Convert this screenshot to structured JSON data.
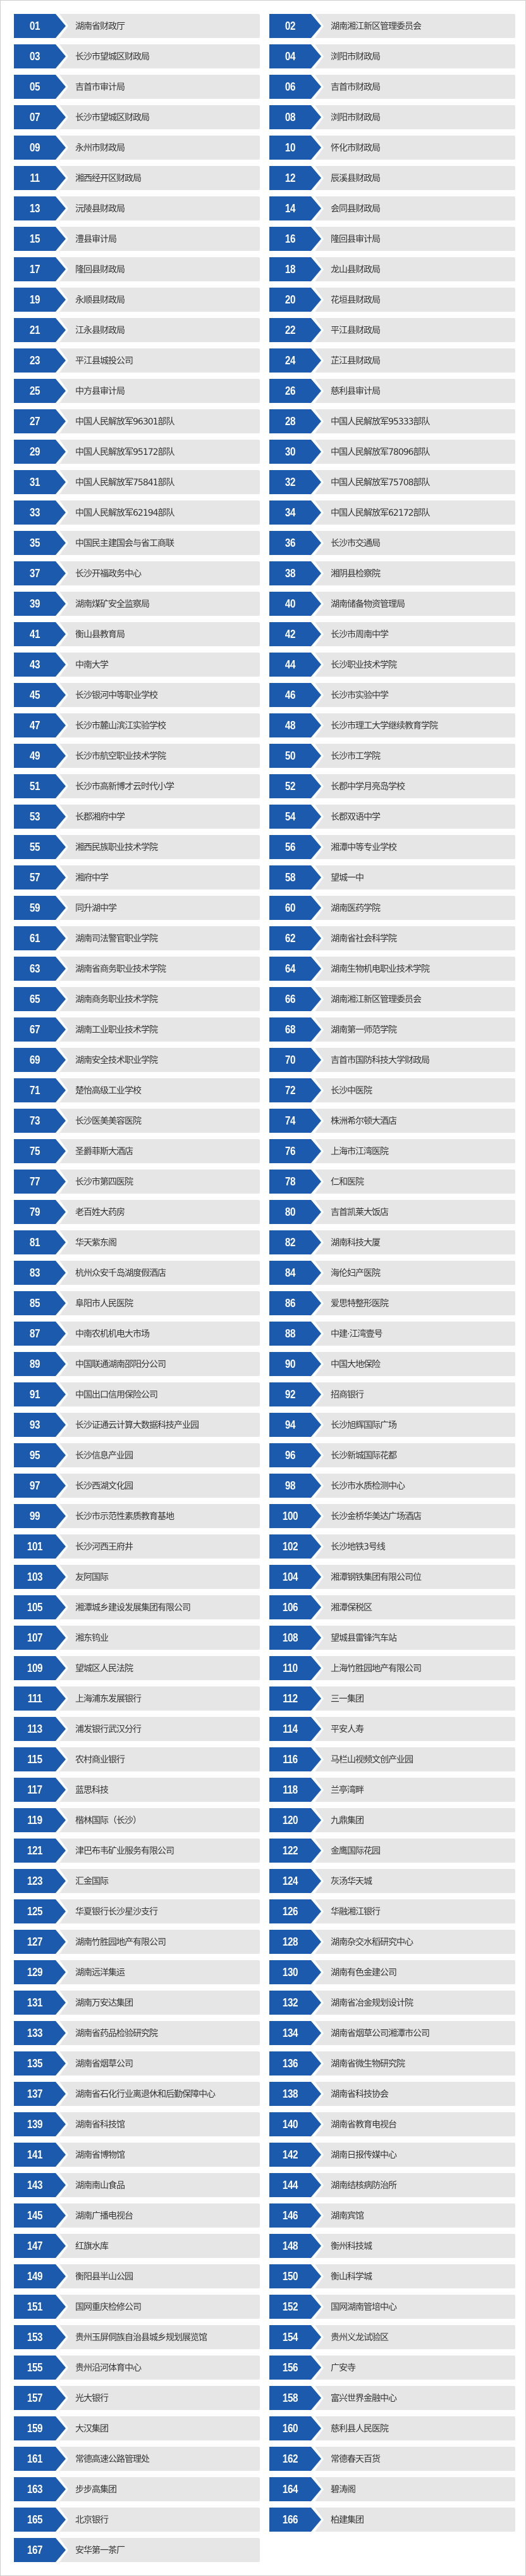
{
  "colors": {
    "badge": "#1c5aad",
    "item_bg": "#e6e6e6",
    "text": "#333333"
  },
  "items": [
    {
      "number": "01",
      "name": "湖南省财政厅"
    },
    {
      "number": "02",
      "name": "湖南湘江新区管理委员会"
    },
    {
      "number": "03",
      "name": "长沙市望城区财政局"
    },
    {
      "number": "04",
      "name": "浏阳市财政局"
    },
    {
      "number": "05",
      "name": "吉首市审计局"
    },
    {
      "number": "06",
      "name": "吉首市财政局"
    },
    {
      "number": "07",
      "name": "长沙市望城区财政局"
    },
    {
      "number": "08",
      "name": "浏阳市财政局"
    },
    {
      "number": "09",
      "name": "永州市财政局"
    },
    {
      "number": "10",
      "name": "怀化市财政局"
    },
    {
      "number": "11",
      "name": "湘西经开区财政局"
    },
    {
      "number": "12",
      "name": "辰溪县财政局"
    },
    {
      "number": "13",
      "name": "沅陵县财政局"
    },
    {
      "number": "14",
      "name": "会同县财政局"
    },
    {
      "number": "15",
      "name": "澧县审计局"
    },
    {
      "number": "16",
      "name": "隆回县审计局"
    },
    {
      "number": "17",
      "name": "隆回县财政局"
    },
    {
      "number": "18",
      "name": "龙山县财政局"
    },
    {
      "number": "19",
      "name": "永顺县财政局"
    },
    {
      "number": "20",
      "name": "花垣县财政局"
    },
    {
      "number": "21",
      "name": "江永县财政局"
    },
    {
      "number": "22",
      "name": "平江县财政局"
    },
    {
      "number": "23",
      "name": "平江县城投公司"
    },
    {
      "number": "24",
      "name": "芷江县财政局"
    },
    {
      "number": "25",
      "name": "中方县审计局"
    },
    {
      "number": "26",
      "name": "慈利县审计局"
    },
    {
      "number": "27",
      "name": "中国人民解放军96301部队"
    },
    {
      "number": "28",
      "name": "中国人民解放军95333部队"
    },
    {
      "number": "29",
      "name": "中国人民解放军95172部队"
    },
    {
      "number": "30",
      "name": "中国人民解放军78096部队"
    },
    {
      "number": "31",
      "name": "中国人民解放军75841部队"
    },
    {
      "number": "32",
      "name": "中国人民解放军75708部队"
    },
    {
      "number": "33",
      "name": "中国人民解放军62194部队"
    },
    {
      "number": "34",
      "name": "中国人民解放军62172部队"
    },
    {
      "number": "35",
      "name": "中国民主建国会与省工商联"
    },
    {
      "number": "36",
      "name": "长沙市交通局"
    },
    {
      "number": "37",
      "name": "长沙开福政务中心"
    },
    {
      "number": "38",
      "name": "湘阴县检察院"
    },
    {
      "number": "39",
      "name": "湖南煤矿安全监察局"
    },
    {
      "number": "40",
      "name": "湖南储备物资管理局"
    },
    {
      "number": "41",
      "name": "衡山县教育局"
    },
    {
      "number": "42",
      "name": "长沙市周南中学"
    },
    {
      "number": "43",
      "name": "中南大学"
    },
    {
      "number": "44",
      "name": "长沙职业技术学院"
    },
    {
      "number": "45",
      "name": "长沙银河中等职业学校"
    },
    {
      "number": "46",
      "name": "长沙市实验中学"
    },
    {
      "number": "47",
      "name": "长沙市麓山滨江实验学校"
    },
    {
      "number": "48",
      "name": "长沙市理工大学继续教育学院"
    },
    {
      "number": "49",
      "name": "长沙市航空职业技术学院"
    },
    {
      "number": "50",
      "name": "长沙市工学院"
    },
    {
      "number": "51",
      "name": "长沙市高新博才云时代小学"
    },
    {
      "number": "52",
      "name": "长郡中学月亮岛学校"
    },
    {
      "number": "53",
      "name": "长郡湘府中学"
    },
    {
      "number": "54",
      "name": "长郡双语中学"
    },
    {
      "number": "55",
      "name": "湘西民族职业技术学院"
    },
    {
      "number": "56",
      "name": "湘潭中等专业学校"
    },
    {
      "number": "57",
      "name": "湘府中学"
    },
    {
      "number": "58",
      "name": "望城一中"
    },
    {
      "number": "59",
      "name": "同升湖中学"
    },
    {
      "number": "60",
      "name": "湖南医药学院"
    },
    {
      "number": "61",
      "name": "湖南司法警官职业学院"
    },
    {
      "number": "62",
      "name": "湖南省社会科学院"
    },
    {
      "number": "63",
      "name": "湖南省商务职业技术学院"
    },
    {
      "number": "64",
      "name": "湖南生物机电职业技术学院"
    },
    {
      "number": "65",
      "name": "湖南商务职业技术学院"
    },
    {
      "number": "66",
      "name": "湖南湘江新区管理委员会"
    },
    {
      "number": "67",
      "name": "湖南工业职业技术学院"
    },
    {
      "number": "68",
      "name": "湖南第一师范学院"
    },
    {
      "number": "69",
      "name": "湖南安全技术职业学院"
    },
    {
      "number": "70",
      "name": "吉首市国防科技大学财政局"
    },
    {
      "number": "71",
      "name": "楚怡高级工业学校"
    },
    {
      "number": "72",
      "name": "长沙中医院"
    },
    {
      "number": "73",
      "name": "长沙医美美容医院"
    },
    {
      "number": "74",
      "name": "株洲希尔顿大酒店"
    },
    {
      "number": "75",
      "name": "圣爵菲斯大酒店"
    },
    {
      "number": "76",
      "name": "上海市江湾医院"
    },
    {
      "number": "77",
      "name": "长沙市第四医院"
    },
    {
      "number": "78",
      "name": "仁和医院"
    },
    {
      "number": "79",
      "name": "老百姓大药房"
    },
    {
      "number": "80",
      "name": "吉首凯莱大饭店"
    },
    {
      "number": "81",
      "name": "华天紫东阁"
    },
    {
      "number": "82",
      "name": "湖南科技大厦"
    },
    {
      "number": "83",
      "name": "杭州众安千岛湖度假酒店"
    },
    {
      "number": "84",
      "name": "海伦妇产医院"
    },
    {
      "number": "85",
      "name": "阜阳市人民医院"
    },
    {
      "number": "86",
      "name": "爱思特整形医院"
    },
    {
      "number": "87",
      "name": "中南农机机电大市场"
    },
    {
      "number": "88",
      "name": "中建·江湾壹号"
    },
    {
      "number": "89",
      "name": "中国联通湖南邵阳分公司"
    },
    {
      "number": "90",
      "name": "中国大地保险"
    },
    {
      "number": "91",
      "name": "中国出口信用保险公司"
    },
    {
      "number": "92",
      "name": "招商银行"
    },
    {
      "number": "93",
      "name": "长沙证通云计算大数据科技产业园"
    },
    {
      "number": "94",
      "name": "长沙旭辉国际广场"
    },
    {
      "number": "95",
      "name": "长沙信息产业园"
    },
    {
      "number": "96",
      "name": "长沙新城国际花都"
    },
    {
      "number": "97",
      "name": "长沙西湖文化园"
    },
    {
      "number": "98",
      "name": "长沙市水质检测中心"
    },
    {
      "number": "99",
      "name": "长沙市示范性素质教育基地"
    },
    {
      "number": "100",
      "name": "长沙金桥华美达广场酒店"
    },
    {
      "number": "101",
      "name": "长沙河西王府井"
    },
    {
      "number": "102",
      "name": "长沙地铁3号线"
    },
    {
      "number": "103",
      "name": "友阿国际"
    },
    {
      "number": "104",
      "name": "湘潭钢铁集团有限公司位"
    },
    {
      "number": "105",
      "name": "湘潭城乡建设发展集团有限公司"
    },
    {
      "number": "106",
      "name": "湘潭保税区"
    },
    {
      "number": "107",
      "name": "湘东钨业"
    },
    {
      "number": "108",
      "name": "望城县雷锋汽车站"
    },
    {
      "number": "109",
      "name": "望城区人民法院"
    },
    {
      "number": "110",
      "name": "上海竹胜园地产有限公司"
    },
    {
      "number": "111",
      "name": "上海浦东发展银行"
    },
    {
      "number": "112",
      "name": "三一集团"
    },
    {
      "number": "113",
      "name": "浦发银行武汉分行"
    },
    {
      "number": "114",
      "name": "平安人寿"
    },
    {
      "number": "115",
      "name": "农村商业银行"
    },
    {
      "number": "116",
      "name": "马栏山视频文创产业园"
    },
    {
      "number": "117",
      "name": "蓝思科技"
    },
    {
      "number": "118",
      "name": "兰亭湾畔"
    },
    {
      "number": "119",
      "name": "楷林国际（长沙）"
    },
    {
      "number": "120",
      "name": "九鼎集团"
    },
    {
      "number": "121",
      "name": "津巴布韦矿业服务有限公司"
    },
    {
      "number": "122",
      "name": "金鹰国际花园"
    },
    {
      "number": "123",
      "name": "汇金国际"
    },
    {
      "number": "124",
      "name": "灰汤华天城"
    },
    {
      "number": "125",
      "name": "华夏银行长沙星沙支行"
    },
    {
      "number": "126",
      "name": "华融湘江银行"
    },
    {
      "number": "127",
      "name": "湖南竹胜园地产有限公司"
    },
    {
      "number": "128",
      "name": "湖南杂交水稻研究中心"
    },
    {
      "number": "129",
      "name": "湖南远洋集运"
    },
    {
      "number": "130",
      "name": "湖南有色金建公司"
    },
    {
      "number": "131",
      "name": "湖南万安达集团"
    },
    {
      "number": "132",
      "name": "湖南省冶金规划设计院"
    },
    {
      "number": "133",
      "name": "湖南省药品检验研究院"
    },
    {
      "number": "134",
      "name": "湖南省烟草公司湘潭市公司"
    },
    {
      "number": "135",
      "name": "湖南省烟草公司"
    },
    {
      "number": "136",
      "name": "湖南省微生物研究院"
    },
    {
      "number": "137",
      "name": "湖南省石化行业离退休和后勤保障中心"
    },
    {
      "number": "138",
      "name": "湖南省科技协会"
    },
    {
      "number": "139",
      "name": "湖南省科技馆"
    },
    {
      "number": "140",
      "name": "湖南省教育电视台"
    },
    {
      "number": "141",
      "name": "湖南省博物馆"
    },
    {
      "number": "142",
      "name": "湖南日报传媒中心"
    },
    {
      "number": "143",
      "name": "湖南南山食品"
    },
    {
      "number": "144",
      "name": "湖南结核病防治所"
    },
    {
      "number": "145",
      "name": "湖南广播电视台"
    },
    {
      "number": "146",
      "name": "湖南宾馆"
    },
    {
      "number": "147",
      "name": "红旗水库"
    },
    {
      "number": "148",
      "name": "衡州科技城"
    },
    {
      "number": "149",
      "name": "衡阳县半山公园"
    },
    {
      "number": "150",
      "name": "衡山科学城"
    },
    {
      "number": "151",
      "name": "国网重庆检修公司"
    },
    {
      "number": "152",
      "name": "国网湖南管培中心"
    },
    {
      "number": "153",
      "name": "贵州玉屏侗族自治县城乡规划展览馆"
    },
    {
      "number": "154",
      "name": "贵州义龙试验区"
    },
    {
      "number": "155",
      "name": "贵州沿河体育中心"
    },
    {
      "number": "156",
      "name": "广安寺"
    },
    {
      "number": "157",
      "name": "光大银行"
    },
    {
      "number": "158",
      "name": "富兴世界金融中心"
    },
    {
      "number": "159",
      "name": "大汉集团"
    },
    {
      "number": "160",
      "name": "慈利县人民医院"
    },
    {
      "number": "161",
      "name": "常德高速公路管理处"
    },
    {
      "number": "162",
      "name": "常德春天百货"
    },
    {
      "number": "163",
      "name": "步步高集团"
    },
    {
      "number": "164",
      "name": "碧涛阁"
    },
    {
      "number": "165",
      "name": "北京银行"
    },
    {
      "number": "166",
      "name": "柏建集团"
    },
    {
      "number": "167",
      "name": "安华第一茶厂"
    }
  ]
}
